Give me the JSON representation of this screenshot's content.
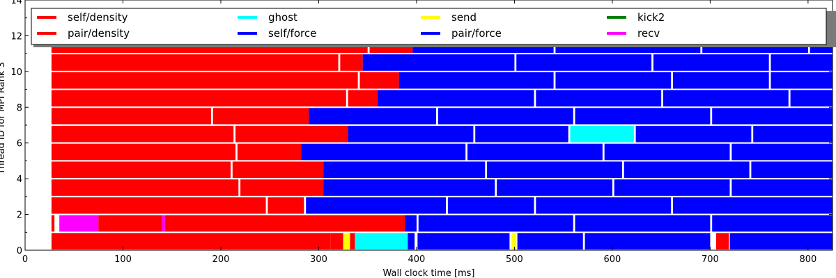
{
  "chart_data": {
    "type": "bar",
    "subtype": "task-timeline",
    "title": "",
    "xlabel": "Wall clock time [ms]",
    "ylabel": "Thread ID for MPI Rank 3",
    "xlim": [
      0,
      825
    ],
    "ylim": [
      0,
      14
    ],
    "xticks": [
      0,
      100,
      200,
      300,
      400,
      500,
      600,
      700,
      800
    ],
    "yticks": [
      0,
      2,
      4,
      6,
      8,
      10,
      12,
      14
    ],
    "grid": false,
    "legend": {
      "placement": "top",
      "columns": 5,
      "entries": [
        {
          "name": "self/density",
          "color": "#ff0000"
        },
        {
          "name": "pair/density",
          "color": "#ff0000"
        },
        {
          "name": "ghost",
          "color": "#00ffff"
        },
        {
          "name": "self/force",
          "color": "#0000ff"
        },
        {
          "name": "send",
          "color": "#ffff00"
        },
        {
          "name": "pair/force",
          "color": "#0000ff"
        },
        {
          "name": "kick2",
          "color": "#008000"
        },
        {
          "name": "recv",
          "color": "#ff00ff"
        }
      ]
    },
    "task_colors": {
      "self/density": "#ff0000",
      "pair/density": "#ff0000",
      "ghost": "#00ffff",
      "self/force": "#0000ff",
      "send": "#ffff00",
      "pair/force": "#0000ff",
      "kick2": "#008000",
      "recv": "#ff00ff"
    },
    "threads": [
      {
        "id": 0,
        "tasks": [
          [
            "pair/density",
            27,
            312
          ],
          [
            "self/density",
            312,
            325
          ],
          [
            "send",
            325,
            332
          ],
          [
            "pair/density",
            332,
            337
          ],
          [
            "ghost",
            337,
            391
          ],
          [
            "pair/force",
            391,
            398
          ],
          [
            "pair/force",
            401,
            495
          ],
          [
            "send",
            497,
            502
          ],
          [
            "pair/force",
            503,
            570
          ],
          [
            "self/force",
            572,
            700
          ],
          [
            "pair/density",
            706,
            719
          ],
          [
            "pair/force",
            720,
            825
          ]
        ]
      },
      {
        "id": 1,
        "tasks": [
          [
            "pair/density",
            27,
            30
          ],
          [
            "recv",
            35,
            75
          ],
          [
            "pair/density",
            75,
            140
          ],
          [
            "recv",
            140,
            143
          ],
          [
            "pair/density",
            143,
            388
          ],
          [
            "pair/force",
            388,
            400
          ],
          [
            "pair/force",
            402,
            560
          ],
          [
            "self/force",
            562,
            700
          ],
          [
            "pair/force",
            702,
            825
          ]
        ]
      },
      {
        "id": 2,
        "tasks": [
          [
            "pair/density",
            27,
            246
          ],
          [
            "pair/density",
            248,
            285
          ],
          [
            "pair/force",
            287,
            430
          ],
          [
            "self/force",
            432,
            520
          ],
          [
            "pair/force",
            522,
            660
          ],
          [
            "self/force",
            662,
            825
          ]
        ]
      },
      {
        "id": 3,
        "tasks": [
          [
            "pair/density",
            27,
            218
          ],
          [
            "pair/density",
            220,
            305
          ],
          [
            "pair/force",
            305,
            480
          ],
          [
            "self/force",
            482,
            600
          ],
          [
            "pair/force",
            602,
            720
          ],
          [
            "self/force",
            722,
            825
          ]
        ]
      },
      {
        "id": 4,
        "tasks": [
          [
            "pair/density",
            27,
            210
          ],
          [
            "pair/density",
            212,
            305
          ],
          [
            "pair/force",
            305,
            470
          ],
          [
            "self/force",
            472,
            610
          ],
          [
            "pair/force",
            612,
            740
          ],
          [
            "self/force",
            742,
            825
          ]
        ]
      },
      {
        "id": 5,
        "tasks": [
          [
            "pair/density",
            27,
            215
          ],
          [
            "pair/density",
            217,
            282
          ],
          [
            "pair/force",
            282,
            450
          ],
          [
            "self/force",
            452,
            590
          ],
          [
            "pair/force",
            592,
            720
          ],
          [
            "self/force",
            722,
            825
          ]
        ]
      },
      {
        "id": 6,
        "tasks": [
          [
            "pair/density",
            27,
            213
          ],
          [
            "pair/density",
            215,
            330
          ],
          [
            "pair/force",
            330,
            458
          ],
          [
            "self/force",
            460,
            555
          ],
          [
            "ghost",
            557,
            622
          ],
          [
            "pair/force",
            624,
            742
          ],
          [
            "self/force",
            744,
            825
          ]
        ]
      },
      {
        "id": 7,
        "tasks": [
          [
            "pair/density",
            27,
            190
          ],
          [
            "pair/density",
            192,
            290
          ],
          [
            "pair/force",
            290,
            420
          ],
          [
            "self/force",
            422,
            560
          ],
          [
            "pair/force",
            562,
            700
          ],
          [
            "self/force",
            702,
            825
          ]
        ]
      },
      {
        "id": 8,
        "tasks": [
          [
            "pair/density",
            27,
            328
          ],
          [
            "pair/density",
            330,
            360
          ],
          [
            "pair/force",
            360,
            520
          ],
          [
            "self/force",
            522,
            650
          ],
          [
            "pair/force",
            652,
            780
          ],
          [
            "self/force",
            782,
            825
          ]
        ]
      },
      {
        "id": 9,
        "tasks": [
          [
            "pair/density",
            27,
            340
          ],
          [
            "pair/density",
            342,
            382
          ],
          [
            "pair/force",
            382,
            540
          ],
          [
            "self/force",
            542,
            660
          ],
          [
            "pair/force",
            662,
            760
          ],
          [
            "self/force",
            762,
            825
          ]
        ]
      },
      {
        "id": 10,
        "tasks": [
          [
            "pair/density",
            27,
            320
          ],
          [
            "pair/density",
            322,
            345
          ],
          [
            "pair/force",
            345,
            500
          ],
          [
            "self/force",
            502,
            640
          ],
          [
            "pair/force",
            642,
            760
          ],
          [
            "self/force",
            762,
            825
          ]
        ]
      },
      {
        "id": 11,
        "tasks": [
          [
            "pair/density",
            27,
            350
          ],
          [
            "pair/density",
            352,
            396
          ],
          [
            "pair/force",
            396,
            540
          ],
          [
            "self/force",
            542,
            690
          ],
          [
            "pair/force",
            692,
            800
          ],
          [
            "self/force",
            802,
            825
          ]
        ]
      }
    ]
  }
}
